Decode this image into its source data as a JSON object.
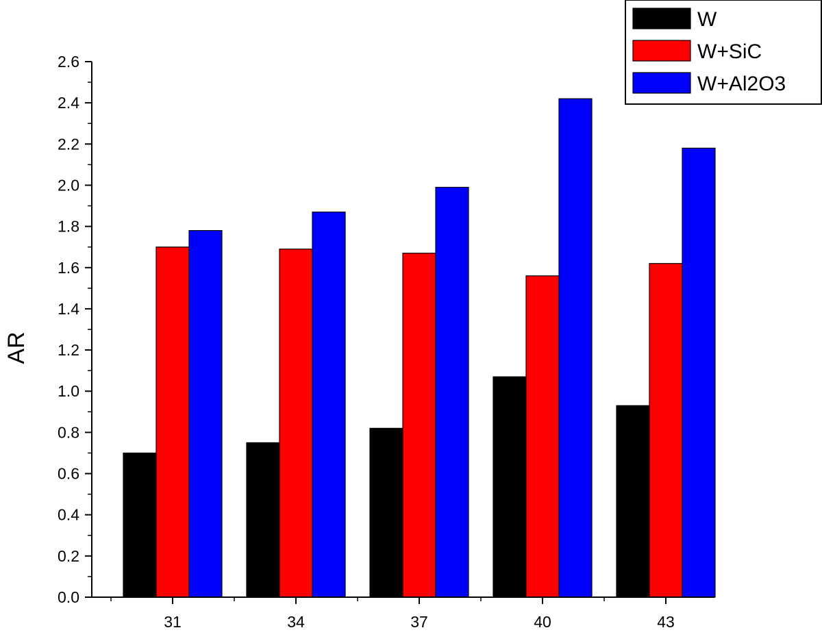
{
  "chart_data": {
    "type": "bar",
    "title": "",
    "xlabel": "",
    "ylabel": "AR",
    "categories": [
      "31",
      "34",
      "37",
      "40",
      "43"
    ],
    "series": [
      {
        "name": "W",
        "color": "#000000",
        "values": [
          0.7,
          0.75,
          0.82,
          1.07,
          0.93
        ]
      },
      {
        "name": "W+SiC",
        "color": "#ff0000",
        "values": [
          1.7,
          1.69,
          1.67,
          1.56,
          1.62
        ]
      },
      {
        "name": "W+Al2O3",
        "color": "#0000ff",
        "values": [
          1.78,
          1.87,
          1.99,
          2.42,
          2.18
        ]
      }
    ],
    "ylim": [
      0,
      2.6
    ],
    "yticks": [
      "0.0",
      "0.2",
      "0.4",
      "0.6",
      "0.8",
      "1.0",
      "1.2",
      "1.4",
      "1.6",
      "1.8",
      "2.0",
      "2.2",
      "2.4",
      "2.6"
    ],
    "ytick_step": 0.2,
    "grid": false,
    "legend_position": "top-right"
  }
}
